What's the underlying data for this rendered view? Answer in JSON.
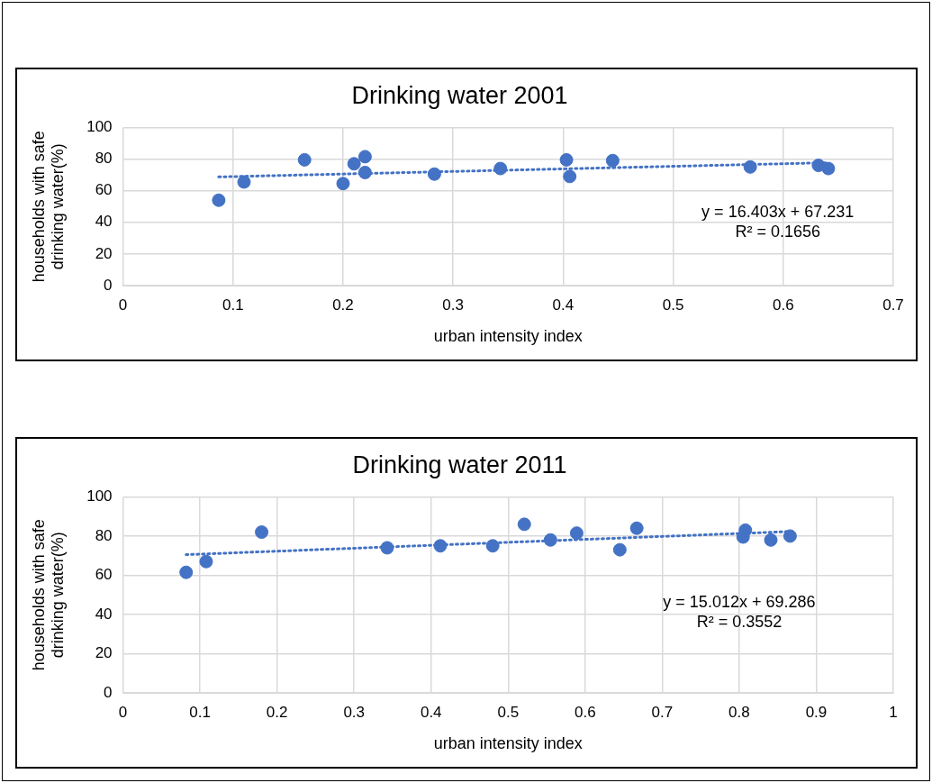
{
  "chart_data": [
    {
      "type": "scatter",
      "title": "Drinking water 2001",
      "xlabel": "urban intensity index",
      "ylabel": "households with safe drinking water(%)",
      "xlim": [
        0,
        0.7
      ],
      "xticks": [
        0,
        0.1,
        0.2,
        0.3,
        0.4,
        0.5,
        0.6,
        0.7
      ],
      "ylim": [
        0,
        100
      ],
      "yticks": [
        0,
        20,
        40,
        60,
        80,
        100
      ],
      "grid": true,
      "legend": false,
      "series": [
        {
          "type": "scatter",
          "color": "#4472c4",
          "marker": "circle",
          "x": [
            0.087,
            0.11,
            0.165,
            0.2,
            0.21,
            0.22,
            0.22,
            0.283,
            0.343,
            0.403,
            0.406,
            0.445,
            0.57,
            0.632,
            0.641
          ],
          "values": [
            54,
            65.5,
            79.5,
            64.5,
            77,
            81.5,
            71.5,
            70.5,
            74,
            79.5,
            69,
            79,
            75,
            76,
            74
          ]
        },
        {
          "type": "line",
          "color": "#4472c4",
          "marker": "none",
          "line_style": "dotted",
          "x": [
            0.087,
            0.641
          ],
          "values": [
            68.7,
            77.7
          ]
        }
      ],
      "annotations": [
        "y = 16.403x + 67.231",
        "R² = 0.1656"
      ]
    },
    {
      "type": "scatter",
      "title": "Drinking water 2011",
      "xlabel": "urban intensity index",
      "ylabel": "households with safe drinking water(%)",
      "xlim": [
        0,
        1
      ],
      "xticks": [
        0,
        0.1,
        0.2,
        0.3,
        0.4,
        0.5,
        0.6,
        0.7,
        0.8,
        0.9,
        1
      ],
      "ylim": [
        0,
        100
      ],
      "yticks": [
        0,
        20,
        40,
        60,
        80,
        100
      ],
      "grid": true,
      "legend": false,
      "series": [
        {
          "type": "scatter",
          "color": "#4472c4",
          "marker": "circle",
          "x": [
            0.082,
            0.108,
            0.18,
            0.343,
            0.412,
            0.48,
            0.521,
            0.555,
            0.589,
            0.645,
            0.667,
            0.805,
            0.808,
            0.841,
            0.866
          ],
          "values": [
            61.5,
            67,
            82,
            74,
            75,
            75,
            86,
            78,
            81.5,
            73,
            84,
            79.5,
            83,
            78,
            80
          ]
        },
        {
          "type": "line",
          "color": "#4472c4",
          "marker": "none",
          "line_style": "dotted",
          "x": [
            0.082,
            0.866
          ],
          "values": [
            70.5,
            82.3
          ]
        }
      ],
      "annotations": [
        "y = 15.012x + 69.286",
        "R² = 0.3552"
      ]
    }
  ]
}
